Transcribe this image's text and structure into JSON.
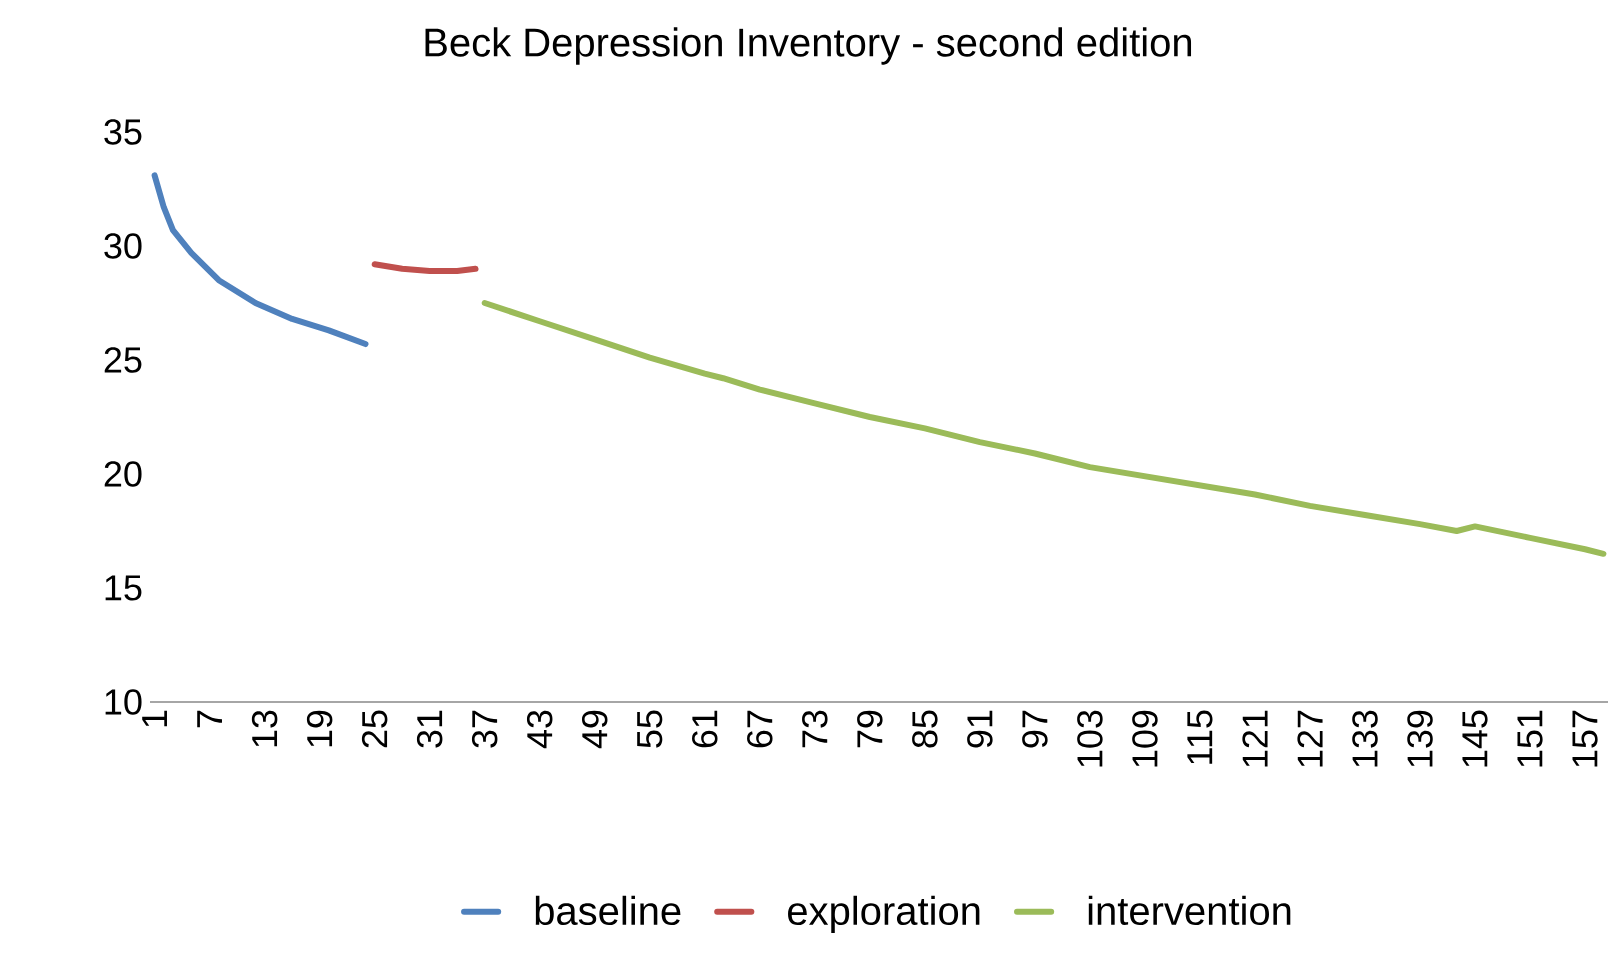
{
  "chart_data": {
    "type": "line",
    "title": "Beck Depression Inventory - second edition",
    "xlim": [
      0.5,
      159.5
    ],
    "xticks": [
      1,
      7,
      13,
      19,
      25,
      31,
      37,
      43,
      49,
      55,
      61,
      67,
      73,
      79,
      85,
      91,
      97,
      103,
      109,
      115,
      121,
      127,
      133,
      139,
      145,
      151,
      157
    ],
    "ylim": [
      10,
      35
    ],
    "yticks": [
      10,
      15,
      20,
      25,
      30,
      35
    ],
    "grid": false,
    "legend": "bottom",
    "marker": "none",
    "line_style": "solid",
    "series": [
      {
        "name": "baseline",
        "color": "#4f81bd",
        "x": [
          1,
          2,
          3,
          5,
          8,
          12,
          16,
          20,
          24
        ],
        "values": [
          33.1,
          31.7,
          30.7,
          29.7,
          28.5,
          27.5,
          26.8,
          26.3,
          25.7
        ]
      },
      {
        "name": "exploration",
        "color": "#c0504d",
        "x": [
          25,
          28,
          31,
          34,
          36
        ],
        "values": [
          29.2,
          29.0,
          28.9,
          28.9,
          29.0
        ]
      },
      {
        "name": "intervention",
        "color": "#9bbb59",
        "x": [
          37,
          43,
          49,
          55,
          61,
          63,
          67,
          73,
          79,
          85,
          91,
          97,
          103,
          109,
          115,
          121,
          127,
          133,
          139,
          143,
          145,
          151,
          157,
          159
        ],
        "values": [
          27.5,
          26.7,
          25.9,
          25.1,
          24.4,
          24.2,
          23.7,
          23.1,
          22.5,
          22.0,
          21.4,
          20.9,
          20.3,
          19.9,
          19.5,
          19.1,
          18.6,
          18.2,
          17.8,
          17.5,
          17.7,
          17.2,
          16.7,
          16.5
        ]
      }
    ]
  }
}
